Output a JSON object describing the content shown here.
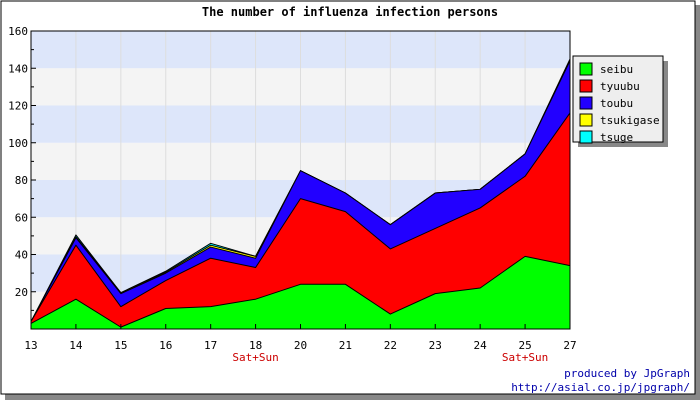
{
  "chart_data": {
    "type": "area",
    "stacked": true,
    "title": "The number of influenza infection persons",
    "xlabel": "",
    "ylabel": "",
    "categories": [
      "13",
      "14",
      "15",
      "16",
      "17",
      "18",
      "20",
      "21",
      "22",
      "23",
      "24",
      "25",
      "27"
    ],
    "x_sublabels": [
      "",
      "",
      "",
      "",
      "",
      "Sat+Sun",
      "",
      "",
      "",
      "",
      "",
      "Sat+Sun",
      ""
    ],
    "ylim": [
      0,
      160
    ],
    "yticks": [
      20,
      40,
      60,
      80,
      100,
      120,
      140,
      160
    ],
    "grid": true,
    "legend_position": "top-right",
    "series": [
      {
        "name": "seibu",
        "color": "#00ff00",
        "values": [
          3,
          16,
          1,
          11,
          12,
          16,
          24,
          24,
          8,
          19,
          22,
          39,
          34
        ]
      },
      {
        "name": "tyuubu",
        "color": "#ff0000",
        "values": [
          1,
          29,
          11,
          15,
          26,
          17,
          46,
          39,
          35,
          35,
          43,
          43,
          82
        ]
      },
      {
        "name": "toubu",
        "color": "#2200ff",
        "values": [
          0,
          4,
          7,
          4,
          6,
          5,
          15,
          10,
          13,
          19,
          10,
          12,
          28
        ]
      },
      {
        "name": "tsukigase",
        "color": "#ffff00",
        "values": [
          0,
          0.5,
          0.5,
          0.5,
          1,
          1,
          0,
          0,
          0,
          0,
          0,
          0,
          0.5
        ]
      },
      {
        "name": "tsuge",
        "color": "#00ffff",
        "values": [
          0,
          1,
          0,
          0.5,
          1,
          0,
          0,
          0,
          0,
          0,
          0,
          0,
          0.5
        ]
      }
    ]
  },
  "footer": {
    "line1": "produced by JpGraph",
    "line2": "http://asial.co.jp/jpgraph/"
  },
  "colors": {
    "band_blue": "#dde6fa",
    "band_gray": "#f4f4f4",
    "sublabel": "#cc0000",
    "footer_link": "#0000aa"
  }
}
